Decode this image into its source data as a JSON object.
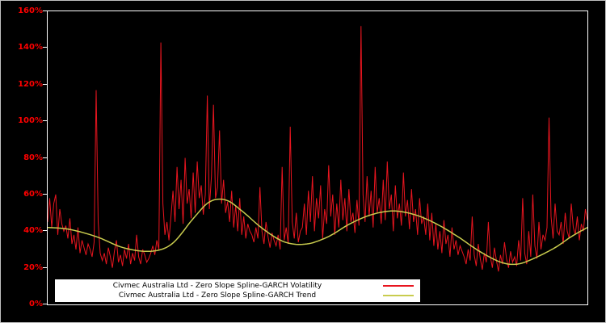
{
  "chart_data": {
    "type": "line",
    "title": "",
    "xlabel": "",
    "ylabel": "",
    "grid": false,
    "background_color": "#000000",
    "plot_border_color": "#ffffff",
    "axis_label_color": "#ff0000",
    "ylim": [
      0,
      160
    ],
    "y_ticks": [
      {
        "value": 0,
        "label": "0%"
      },
      {
        "value": 20,
        "label": "20%"
      },
      {
        "value": 40,
        "label": "40%"
      },
      {
        "value": 60,
        "label": "60%"
      },
      {
        "value": 80,
        "label": "80%"
      },
      {
        "value": 100,
        "label": "100%"
      },
      {
        "value": 120,
        "label": "120%"
      },
      {
        "value": 140,
        "label": "140%"
      },
      {
        "value": 160,
        "label": "160%"
      }
    ],
    "legend_position": "bottom-left-inside",
    "series": [
      {
        "name": "Civmec Australia Ltd - Zero Slope Spline-GARCH Volatility",
        "color": "#e8151f",
        "stroke_width": 1,
        "values": [
          45,
          58,
          42,
          55,
          60,
          38,
          52,
          44,
          40,
          43,
          36,
          47,
          33,
          38,
          30,
          42,
          28,
          35,
          31,
          27,
          33,
          30,
          26,
          34,
          117,
          45,
          28,
          24,
          28,
          22,
          31,
          26,
          20,
          29,
          35,
          23,
          27,
          21,
          30,
          25,
          33,
          22,
          28,
          24,
          38,
          26,
          22,
          30,
          27,
          23,
          25,
          28,
          32,
          27,
          35,
          30,
          143,
          55,
          38,
          45,
          35,
          48,
          62,
          45,
          75,
          52,
          68,
          44,
          80,
          55,
          63,
          47,
          72,
          50,
          78,
          58,
          65,
          49,
          60,
          114,
          52,
          70,
          109,
          58,
          64,
          95,
          55,
          68,
          50,
          56,
          45,
          62,
          42,
          54,
          40,
          58,
          38,
          48,
          36,
          44,
          40,
          38,
          34,
          42,
          36,
          64,
          40,
          33,
          45,
          37,
          31,
          39,
          35,
          32,
          38,
          30,
          75,
          35,
          42,
          33,
          97,
          45,
          36,
          50,
          34,
          40,
          42,
          55,
          38,
          62,
          45,
          70,
          40,
          58,
          47,
          65,
          36,
          52,
          44,
          76,
          48,
          60,
          38,
          55,
          42,
          68,
          46,
          58,
          40,
          63,
          45,
          50,
          39,
          57,
          43,
          152,
          60,
          45,
          70,
          48,
          62,
          42,
          75,
          50,
          58,
          44,
          68,
          46,
          78,
          52,
          60,
          40,
          65,
          47,
          55,
          43,
          72,
          48,
          57,
          41,
          63,
          45,
          52,
          38,
          58,
          44,
          48,
          38,
          55,
          35,
          50,
          32,
          44,
          30,
          40,
          28,
          46,
          33,
          38,
          26,
          42,
          30,
          35,
          27,
          32,
          29,
          26,
          22,
          30,
          24,
          48,
          27,
          21,
          33,
          25,
          19,
          28,
          23,
          45,
          26,
          20,
          31,
          24,
          18,
          27,
          22,
          34,
          25,
          20,
          29,
          23,
          26,
          21,
          35,
          24,
          58,
          28,
          22,
          40,
          26,
          60,
          32,
          25,
          45,
          30,
          38,
          35,
          42,
          102,
          48,
          36,
          55,
          40,
          38,
          45,
          33,
          50,
          40,
          36,
          55,
          42,
          38,
          48,
          35,
          44,
          40,
          52,
          46
        ]
      },
      {
        "name": "Civmec Australia Ltd - Zero Slope Spline-GARCH Trend",
        "color": "#c9cc4e",
        "stroke_width": 1.5,
        "knots": [
          [
            0,
            42
          ],
          [
            0.04,
            41
          ],
          [
            0.09,
            37
          ],
          [
            0.14,
            31
          ],
          [
            0.19,
            29
          ],
          [
            0.23,
            33
          ],
          [
            0.27,
            47
          ],
          [
            0.3,
            56
          ],
          [
            0.33,
            57
          ],
          [
            0.36,
            51
          ],
          [
            0.4,
            41
          ],
          [
            0.44,
            34
          ],
          [
            0.48,
            33
          ],
          [
            0.52,
            37
          ],
          [
            0.56,
            44
          ],
          [
            0.6,
            49
          ],
          [
            0.64,
            51
          ],
          [
            0.68,
            49
          ],
          [
            0.72,
            44
          ],
          [
            0.76,
            37
          ],
          [
            0.8,
            29
          ],
          [
            0.84,
            23
          ],
          [
            0.87,
            22
          ],
          [
            0.9,
            25
          ],
          [
            0.94,
            31
          ],
          [
            0.97,
            37
          ],
          [
            1,
            42
          ]
        ]
      }
    ]
  },
  "legend": {
    "items": [
      {
        "label": "Civmec Australia Ltd - Zero Slope Spline-GARCH Volatility",
        "color": "#e8151f"
      },
      {
        "label": "Civmec Australia Ltd - Zero Slope Spline-GARCH Trend",
        "color": "#c9cc4e"
      }
    ]
  }
}
